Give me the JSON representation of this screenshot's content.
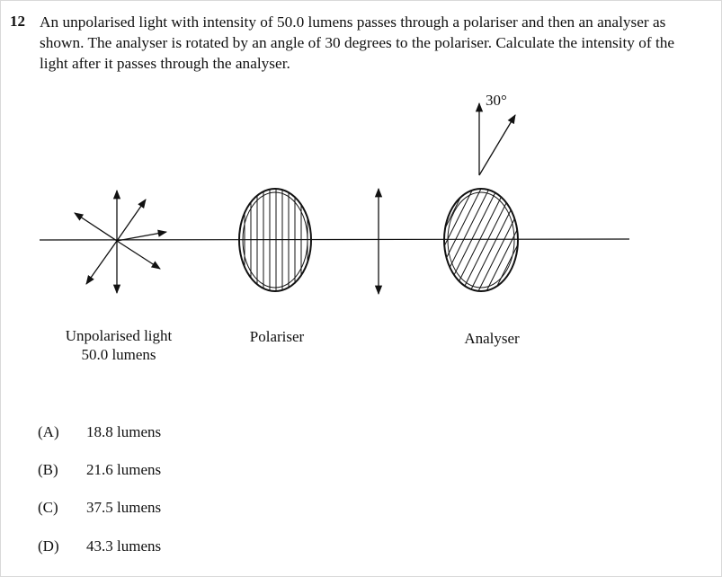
{
  "question": {
    "number": "12",
    "text": "An unpolarised light with intensity of 50.0 lumens passes through a polariser and then an analyser as shown. The analyser is rotated by an angle of 30 degrees to the polariser. Calculate the intensity of the light after it passes through the analyser."
  },
  "diagram": {
    "angle_label": "30°",
    "source_label_line1": "Unpolarised light",
    "source_label_line2": "50.0 lumens",
    "polariser_label": "Polariser",
    "analyser_label": "Analyser"
  },
  "options": [
    {
      "letter": "(A)",
      "text": "18.8 lumens"
    },
    {
      "letter": "(B)",
      "text": "21.6 lumens"
    },
    {
      "letter": "(C)",
      "text": "37.5 lumens"
    },
    {
      "letter": "(D)",
      "text": "43.3 lumens"
    }
  ]
}
